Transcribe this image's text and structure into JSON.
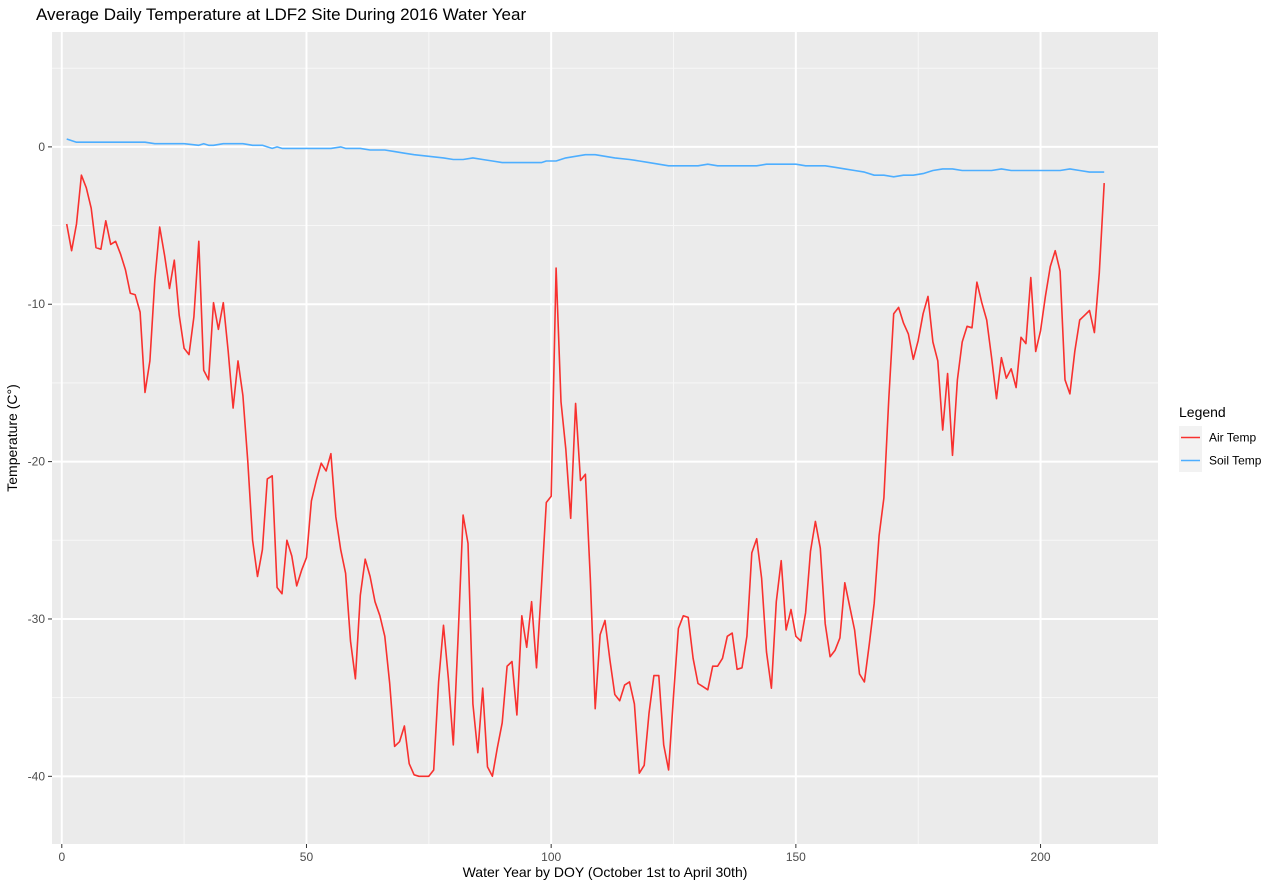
{
  "chart_data": {
    "type": "line",
    "title": "Average Daily Temperature at LDF2 Site During 2016 Water Year",
    "xlabel": "Water Year by DOY (October 1st to April 30th)",
    "ylabel": "Temperature (C°)",
    "xlim": [
      -2,
      224
    ],
    "ylim": [
      -44.3,
      7.3
    ],
    "x_ticks": [
      0,
      50,
      100,
      150,
      200
    ],
    "y_ticks": [
      0,
      -10,
      -20,
      -30,
      -40
    ],
    "x_tick_labels": [
      "0",
      "50",
      "100",
      "150",
      "200"
    ],
    "y_tick_labels": [
      "0",
      "-10",
      "-20",
      "-30",
      "-40"
    ],
    "grid": true,
    "legend": {
      "title": "Legend",
      "position": "right"
    },
    "series": [
      {
        "name": "Air Temp",
        "color": "#F8312F",
        "points": [
          [
            1,
            -4.9
          ],
          [
            2,
            -6.6
          ],
          [
            3,
            -4.9
          ],
          [
            4,
            -1.8
          ],
          [
            5,
            -2.6
          ],
          [
            6,
            -3.9
          ],
          [
            7,
            -6.4
          ],
          [
            8,
            -6.5
          ],
          [
            9,
            -4.7
          ],
          [
            10,
            -6.2
          ],
          [
            11,
            -6.0
          ],
          [
            12,
            -6.8
          ],
          [
            13,
            -7.8
          ],
          [
            14,
            -9.3
          ],
          [
            15,
            -9.4
          ],
          [
            16,
            -10.5
          ],
          [
            17,
            -15.6
          ],
          [
            18,
            -13.6
          ],
          [
            19,
            -8.5
          ],
          [
            20,
            -5.1
          ],
          [
            21,
            -6.9
          ],
          [
            22,
            -9.0
          ],
          [
            23,
            -7.2
          ],
          [
            24,
            -10.7
          ],
          [
            25,
            -12.8
          ],
          [
            26,
            -13.2
          ],
          [
            27,
            -10.8
          ],
          [
            28,
            -6.0
          ],
          [
            29,
            -14.2
          ],
          [
            30,
            -14.8
          ],
          [
            31,
            -9.9
          ],
          [
            32,
            -11.6
          ],
          [
            33,
            -9.9
          ],
          [
            34,
            -13.0
          ],
          [
            35,
            -16.6
          ],
          [
            36,
            -13.6
          ],
          [
            37,
            -15.8
          ],
          [
            38,
            -20.0
          ],
          [
            39,
            -25.0
          ],
          [
            40,
            -27.3
          ],
          [
            41,
            -25.6
          ],
          [
            42,
            -21.1
          ],
          [
            43,
            -20.9
          ],
          [
            44,
            -28.0
          ],
          [
            45,
            -28.4
          ],
          [
            46,
            -25.0
          ],
          [
            47,
            -26.0
          ],
          [
            48,
            -27.9
          ],
          [
            49,
            -26.9
          ],
          [
            50,
            -26.1
          ],
          [
            51,
            -22.5
          ],
          [
            52,
            -21.2
          ],
          [
            53,
            -20.1
          ],
          [
            54,
            -20.6
          ],
          [
            55,
            -19.5
          ],
          [
            56,
            -23.5
          ],
          [
            57,
            -25.6
          ],
          [
            58,
            -27.1
          ],
          [
            59,
            -31.4
          ],
          [
            60,
            -33.8
          ],
          [
            61,
            -28.5
          ],
          [
            62,
            -26.2
          ],
          [
            63,
            -27.3
          ],
          [
            64,
            -28.9
          ],
          [
            65,
            -29.8
          ],
          [
            66,
            -31.1
          ],
          [
            67,
            -34.1
          ],
          [
            68,
            -38.1
          ],
          [
            69,
            -37.8
          ],
          [
            70,
            -36.8
          ],
          [
            71,
            -39.2
          ],
          [
            72,
            -39.9
          ],
          [
            73,
            -40.0
          ],
          [
            74,
            -40.0
          ],
          [
            75,
            -40.0
          ],
          [
            76,
            -39.6
          ],
          [
            77,
            -34.0
          ],
          [
            78,
            -30.4
          ],
          [
            79,
            -33.8
          ],
          [
            80,
            -38.0
          ],
          [
            81,
            -31.0
          ],
          [
            82,
            -23.4
          ],
          [
            83,
            -25.2
          ],
          [
            84,
            -35.4
          ],
          [
            85,
            -38.5
          ],
          [
            86,
            -34.4
          ],
          [
            87,
            -39.4
          ],
          [
            88,
            -40.0
          ],
          [
            89,
            -38.2
          ],
          [
            90,
            -36.6
          ],
          [
            91,
            -33.0
          ],
          [
            92,
            -32.7
          ],
          [
            93,
            -36.1
          ],
          [
            94,
            -29.8
          ],
          [
            95,
            -31.8
          ],
          [
            96,
            -28.9
          ],
          [
            97,
            -33.1
          ],
          [
            98,
            -28.0
          ],
          [
            99,
            -22.6
          ],
          [
            100,
            -22.2
          ],
          [
            101,
            -7.7
          ],
          [
            102,
            -16.2
          ],
          [
            103,
            -19.2
          ],
          [
            104,
            -23.6
          ],
          [
            105,
            -16.3
          ],
          [
            106,
            -21.2
          ],
          [
            107,
            -20.8
          ],
          [
            108,
            -27.4
          ],
          [
            109,
            -35.7
          ],
          [
            110,
            -31.0
          ],
          [
            111,
            -30.1
          ],
          [
            112,
            -32.6
          ],
          [
            113,
            -34.8
          ],
          [
            114,
            -35.2
          ],
          [
            115,
            -34.2
          ],
          [
            116,
            -34.0
          ],
          [
            117,
            -35.4
          ],
          [
            118,
            -39.8
          ],
          [
            119,
            -39.3
          ],
          [
            120,
            -36.0
          ],
          [
            121,
            -33.6
          ],
          [
            122,
            -33.6
          ],
          [
            123,
            -38.0
          ],
          [
            124,
            -39.6
          ],
          [
            125,
            -34.9
          ],
          [
            126,
            -30.6
          ],
          [
            127,
            -29.8
          ],
          [
            128,
            -29.9
          ],
          [
            129,
            -32.5
          ],
          [
            130,
            -34.1
          ],
          [
            131,
            -34.3
          ],
          [
            132,
            -34.5
          ],
          [
            133,
            -33.0
          ],
          [
            134,
            -33.0
          ],
          [
            135,
            -32.5
          ],
          [
            136,
            -31.1
          ],
          [
            137,
            -30.9
          ],
          [
            138,
            -33.2
          ],
          [
            139,
            -33.1
          ],
          [
            140,
            -31.1
          ],
          [
            141,
            -25.8
          ],
          [
            142,
            -24.9
          ],
          [
            143,
            -27.4
          ],
          [
            144,
            -32.1
          ],
          [
            145,
            -34.4
          ],
          [
            146,
            -28.9
          ],
          [
            147,
            -26.3
          ],
          [
            148,
            -30.7
          ],
          [
            149,
            -29.4
          ],
          [
            150,
            -31.1
          ],
          [
            151,
            -31.4
          ],
          [
            152,
            -29.6
          ],
          [
            153,
            -25.7
          ],
          [
            154,
            -23.8
          ],
          [
            155,
            -25.5
          ],
          [
            156,
            -30.3
          ],
          [
            157,
            -32.4
          ],
          [
            158,
            -32.0
          ],
          [
            159,
            -31.2
          ],
          [
            160,
            -27.7
          ],
          [
            161,
            -29.2
          ],
          [
            162,
            -30.7
          ],
          [
            163,
            -33.5
          ],
          [
            164,
            -34.0
          ],
          [
            165,
            -31.6
          ],
          [
            166,
            -29.0
          ],
          [
            167,
            -24.7
          ],
          [
            168,
            -22.3
          ],
          [
            169,
            -16.0
          ],
          [
            170,
            -10.6
          ],
          [
            171,
            -10.2
          ],
          [
            172,
            -11.2
          ],
          [
            173,
            -11.9
          ],
          [
            174,
            -13.5
          ],
          [
            175,
            -12.3
          ],
          [
            176,
            -10.6
          ],
          [
            177,
            -9.5
          ],
          [
            178,
            -12.4
          ],
          [
            179,
            -13.6
          ],
          [
            180,
            -18.0
          ],
          [
            181,
            -14.4
          ],
          [
            182,
            -19.6
          ],
          [
            183,
            -14.8
          ],
          [
            184,
            -12.4
          ],
          [
            185,
            -11.4
          ],
          [
            186,
            -11.5
          ],
          [
            187,
            -8.6
          ],
          [
            188,
            -9.9
          ],
          [
            189,
            -11.0
          ],
          [
            190,
            -13.4
          ],
          [
            191,
            -16.0
          ],
          [
            192,
            -13.4
          ],
          [
            193,
            -14.7
          ],
          [
            194,
            -14.1
          ],
          [
            195,
            -15.3
          ],
          [
            196,
            -12.1
          ],
          [
            197,
            -12.5
          ],
          [
            198,
            -8.3
          ],
          [
            199,
            -13.0
          ],
          [
            200,
            -11.7
          ],
          [
            201,
            -9.5
          ],
          [
            202,
            -7.6
          ],
          [
            203,
            -6.6
          ],
          [
            204,
            -7.9
          ],
          [
            205,
            -14.8
          ],
          [
            206,
            -15.7
          ],
          [
            207,
            -13.0
          ],
          [
            208,
            -11.0
          ],
          [
            209,
            -10.7
          ],
          [
            210,
            -10.4
          ],
          [
            211,
            -11.8
          ],
          [
            212,
            -8.0
          ],
          [
            213,
            -2.3
          ]
        ]
      },
      {
        "name": "Soil Temp",
        "color": "#4DAEFF",
        "points": [
          [
            1,
            0.5
          ],
          [
            2,
            0.4
          ],
          [
            3,
            0.3
          ],
          [
            5,
            0.3
          ],
          [
            10,
            0.3
          ],
          [
            15,
            0.3
          ],
          [
            17,
            0.3
          ],
          [
            19,
            0.2
          ],
          [
            22,
            0.2
          ],
          [
            25,
            0.2
          ],
          [
            28,
            0.1
          ],
          [
            29,
            0.2
          ],
          [
            30,
            0.1
          ],
          [
            31,
            0.1
          ],
          [
            33,
            0.2
          ],
          [
            37,
            0.2
          ],
          [
            39,
            0.1
          ],
          [
            41,
            0.1
          ],
          [
            42,
            0.0
          ],
          [
            43,
            -0.1
          ],
          [
            44,
            0.0
          ],
          [
            45,
            -0.1
          ],
          [
            50,
            -0.1
          ],
          [
            52,
            -0.1
          ],
          [
            55,
            -0.1
          ],
          [
            57,
            0.0
          ],
          [
            58,
            -0.1
          ],
          [
            61,
            -0.1
          ],
          [
            63,
            -0.2
          ],
          [
            66,
            -0.2
          ],
          [
            68,
            -0.3
          ],
          [
            70,
            -0.4
          ],
          [
            72,
            -0.5
          ],
          [
            75,
            -0.6
          ],
          [
            78,
            -0.7
          ],
          [
            80,
            -0.8
          ],
          [
            82,
            -0.8
          ],
          [
            84,
            -0.7
          ],
          [
            86,
            -0.8
          ],
          [
            88,
            -0.9
          ],
          [
            90,
            -1.0
          ],
          [
            92,
            -1.0
          ],
          [
            95,
            -1.0
          ],
          [
            98,
            -1.0
          ],
          [
            99,
            -0.9
          ],
          [
            101,
            -0.9
          ],
          [
            103,
            -0.7
          ],
          [
            105,
            -0.6
          ],
          [
            107,
            -0.5
          ],
          [
            109,
            -0.5
          ],
          [
            111,
            -0.6
          ],
          [
            113,
            -0.7
          ],
          [
            116,
            -0.8
          ],
          [
            118,
            -0.9
          ],
          [
            120,
            -1.0
          ],
          [
            122,
            -1.1
          ],
          [
            124,
            -1.2
          ],
          [
            126,
            -1.2
          ],
          [
            128,
            -1.2
          ],
          [
            130,
            -1.2
          ],
          [
            132,
            -1.1
          ],
          [
            134,
            -1.2
          ],
          [
            136,
            -1.2
          ],
          [
            138,
            -1.2
          ],
          [
            140,
            -1.2
          ],
          [
            142,
            -1.2
          ],
          [
            144,
            -1.1
          ],
          [
            146,
            -1.1
          ],
          [
            148,
            -1.1
          ],
          [
            150,
            -1.1
          ],
          [
            152,
            -1.2
          ],
          [
            154,
            -1.2
          ],
          [
            156,
            -1.2
          ],
          [
            158,
            -1.3
          ],
          [
            160,
            -1.4
          ],
          [
            162,
            -1.5
          ],
          [
            164,
            -1.6
          ],
          [
            166,
            -1.8
          ],
          [
            168,
            -1.8
          ],
          [
            170,
            -1.9
          ],
          [
            172,
            -1.8
          ],
          [
            174,
            -1.8
          ],
          [
            176,
            -1.7
          ],
          [
            178,
            -1.5
          ],
          [
            180,
            -1.4
          ],
          [
            182,
            -1.4
          ],
          [
            184,
            -1.5
          ],
          [
            186,
            -1.5
          ],
          [
            188,
            -1.5
          ],
          [
            190,
            -1.5
          ],
          [
            192,
            -1.4
          ],
          [
            194,
            -1.5
          ],
          [
            196,
            -1.5
          ],
          [
            198,
            -1.5
          ],
          [
            200,
            -1.5
          ],
          [
            202,
            -1.5
          ],
          [
            204,
            -1.5
          ],
          [
            206,
            -1.4
          ],
          [
            208,
            -1.5
          ],
          [
            210,
            -1.6
          ],
          [
            212,
            -1.6
          ],
          [
            213,
            -1.6
          ]
        ]
      }
    ]
  }
}
